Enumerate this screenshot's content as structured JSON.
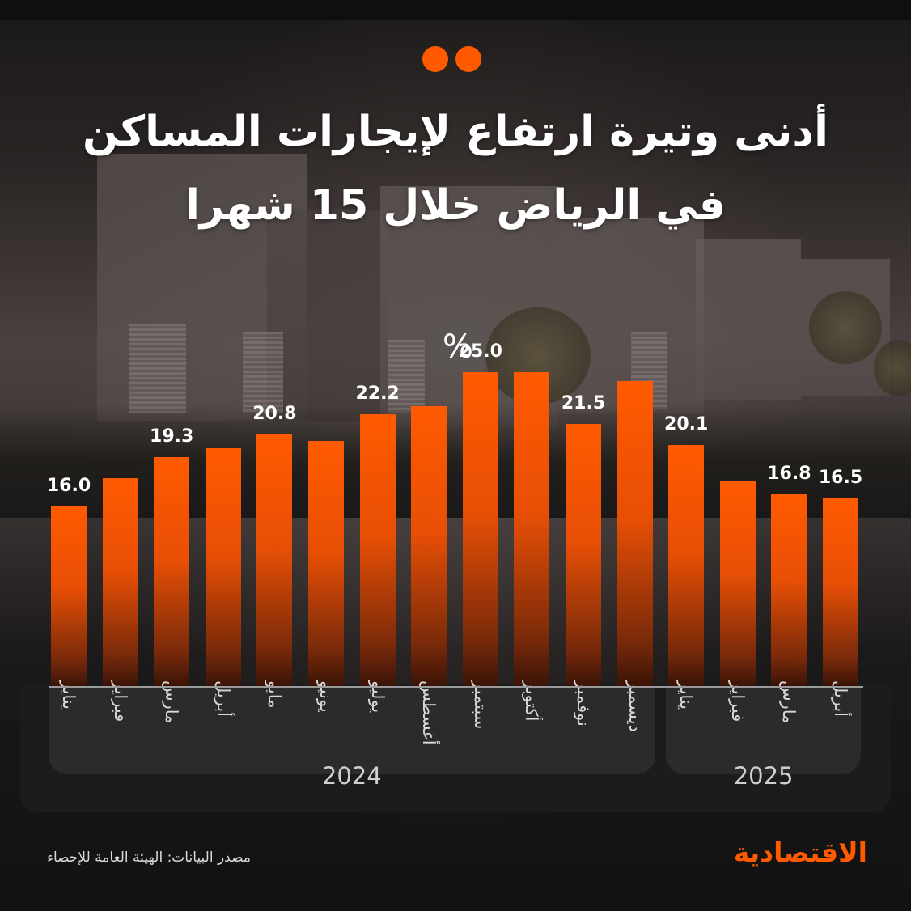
{
  "header": {
    "title_line1": "أدنى وتيرة ارتفاع لإيجارات المساكن",
    "title_line2": "في الرياض خلال 15 شهرا"
  },
  "unit": "%",
  "source": "مصدر البيانات: الهيئة العامة للإحصاء",
  "brand": "الاقتصادية",
  "colors": {
    "accent": "#ff5a00",
    "panel": "#1c1c1c"
  },
  "chart_data": {
    "type": "bar",
    "unit": "%",
    "categories": [
      "يناير",
      "فبراير",
      "مارس",
      "أبريل",
      "مايو",
      "يونيو",
      "يوليو",
      "أغسطس",
      "سبتمبر",
      "أكتوبر",
      "نوفمبر",
      "ديسمبر",
      "يناير",
      "فبراير",
      "مارس",
      "أبريل"
    ],
    "years": [
      {
        "label": "2024",
        "count": 12
      },
      {
        "label": "2025",
        "count": 4
      }
    ],
    "values": [
      16.0,
      17.9,
      19.3,
      19.9,
      20.8,
      20.4,
      22.2,
      22.7,
      25.0,
      25.0,
      21.5,
      24.4,
      20.1,
      17.7,
      16.8,
      16.5
    ],
    "labels": [
      "16.0",
      "",
      "19.3",
      "",
      "20.8",
      "",
      "22.2",
      "",
      "25.0",
      "",
      "21.5",
      "",
      "20.1",
      "",
      "16.8",
      "16.5"
    ],
    "ylim": [
      10,
      26
    ],
    "grid": false,
    "legend": "none"
  }
}
